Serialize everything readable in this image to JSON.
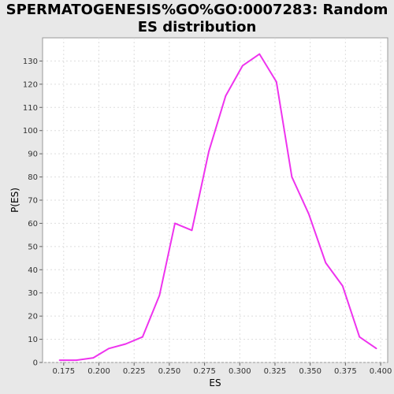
{
  "chart_data": {
    "type": "line",
    "title": "SPERMATOGENESIS%GO%GO:0007283: Random ES distribution",
    "xlabel": "ES",
    "ylabel": "P(ES)",
    "xlim": [
      0.16,
      0.405
    ],
    "ylim": [
      0,
      140
    ],
    "xticks": [
      0.175,
      0.2,
      0.225,
      0.25,
      0.275,
      0.3,
      0.325,
      0.35,
      0.375,
      0.4
    ],
    "xtick_labels": [
      "0.175",
      "0.200",
      "0.225",
      "0.250",
      "0.275",
      "0.300",
      "0.325",
      "0.350",
      "0.375",
      "0.400"
    ],
    "yticks": [
      0,
      10,
      20,
      30,
      40,
      50,
      60,
      70,
      80,
      90,
      100,
      110,
      120,
      130
    ],
    "ytick_labels": [
      "0",
      "10",
      "20",
      "30",
      "40",
      "50",
      "60",
      "70",
      "80",
      "90",
      "100",
      "110",
      "120",
      "130"
    ],
    "grid": true,
    "series": [
      {
        "color": "#ee33ee",
        "x": [
          0.172,
          0.184,
          0.196,
          0.207,
          0.219,
          0.231,
          0.243,
          0.254,
          0.266,
          0.278,
          0.29,
          0.302,
          0.314,
          0.326,
          0.337,
          0.349,
          0.361,
          0.373,
          0.385,
          0.397
        ],
        "y": [
          1,
          1,
          2,
          6,
          8,
          11,
          29,
          60,
          57,
          91,
          115,
          128,
          133,
          121,
          80,
          64,
          43,
          33,
          11,
          6
        ]
      }
    ]
  }
}
